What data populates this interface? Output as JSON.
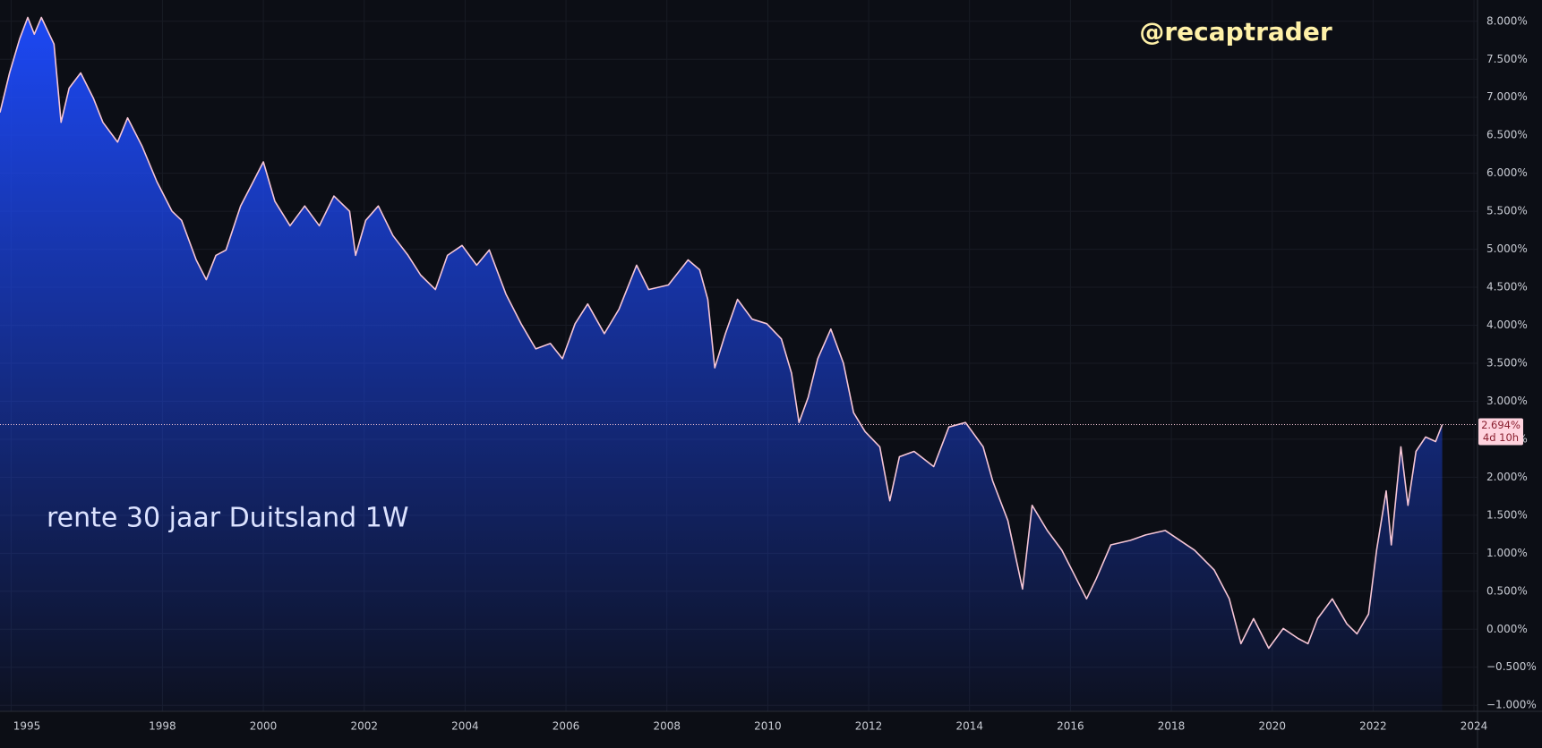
{
  "chart_data": {
    "type": "area",
    "title": "rente 30 jaar Duitsland 1W",
    "watermark": "@recaptrader",
    "x": [
      1994.78,
      1994.97,
      1995.17,
      1995.33,
      1995.46,
      1995.6,
      1995.85,
      1995.99,
      1996.15,
      1996.38,
      1996.63,
      1996.82,
      1997.11,
      1997.31,
      1997.6,
      1997.89,
      1998.19,
      1998.38,
      1998.67,
      1998.87,
      1999.06,
      1999.26,
      1999.55,
      1999.8,
      2000.0,
      2000.23,
      2000.53,
      2000.82,
      2001.11,
      2001.4,
      2001.71,
      2001.83,
      2002.03,
      2002.28,
      2002.57,
      2002.87,
      2003.12,
      2003.41,
      2003.65,
      2003.94,
      2004.23,
      2004.48,
      2004.81,
      2005.11,
      2005.4,
      2005.69,
      2005.93,
      2006.18,
      2006.43,
      2006.76,
      2007.05,
      2007.4,
      2007.64,
      2008.03,
      2008.42,
      2008.65,
      2008.81,
      2008.95,
      2009.16,
      2009.4,
      2009.69,
      2009.98,
      2010.27,
      2010.47,
      2010.62,
      2010.8,
      2010.99,
      2011.25,
      2011.5,
      2011.7,
      2011.93,
      2012.22,
      2012.42,
      2012.61,
      2012.9,
      2013.29,
      2013.59,
      2013.92,
      2014.27,
      2014.46,
      2014.76,
      2015.05,
      2015.24,
      2015.54,
      2015.83,
      2016.12,
      2016.32,
      2016.51,
      2016.8,
      2017.19,
      2017.49,
      2017.88,
      2018.17,
      2018.46,
      2018.85,
      2019.15,
      2019.38,
      2019.63,
      2019.93,
      2020.22,
      2020.51,
      2020.71,
      2020.9,
      2021.19,
      2021.48,
      2021.68,
      2021.91,
      2022.07,
      2022.26,
      2022.36,
      2022.55,
      2022.69,
      2022.85,
      2023.04,
      2023.24,
      2023.37
    ],
    "values": [
      6.8,
      7.32,
      7.77,
      8.05,
      7.83,
      8.05,
      7.7,
      6.67,
      7.12,
      7.32,
      6.99,
      6.67,
      6.41,
      6.73,
      6.35,
      5.89,
      5.5,
      5.38,
      4.86,
      4.6,
      4.92,
      4.99,
      5.57,
      5.89,
      6.15,
      5.63,
      5.31,
      5.57,
      5.31,
      5.7,
      5.5,
      4.92,
      5.38,
      5.57,
      5.18,
      4.92,
      4.66,
      4.47,
      4.92,
      5.05,
      4.79,
      4.99,
      4.41,
      4.02,
      3.69,
      3.76,
      3.56,
      4.02,
      4.28,
      3.89,
      4.21,
      4.79,
      4.47,
      4.53,
      4.86,
      4.73,
      4.34,
      3.44,
      3.89,
      4.34,
      4.08,
      4.02,
      3.82,
      3.37,
      2.72,
      3.05,
      3.56,
      3.95,
      3.5,
      2.85,
      2.6,
      2.4,
      1.69,
      2.27,
      2.34,
      2.14,
      2.66,
      2.72,
      2.4,
      1.95,
      1.43,
      0.53,
      1.63,
      1.3,
      1.04,
      0.66,
      0.4,
      0.66,
      1.11,
      1.17,
      1.24,
      1.3,
      1.17,
      1.04,
      0.78,
      0.4,
      -0.19,
      0.14,
      -0.25,
      0.01,
      -0.12,
      -0.19,
      0.14,
      0.4,
      0.07,
      -0.06,
      0.2,
      1.04,
      1.82,
      1.11,
      2.4,
      1.63,
      2.34,
      2.53,
      2.47,
      2.694
    ],
    "color": "#f6c6d6",
    "fill_color": "#1d4bff",
    "last_value": {
      "value": 2.694,
      "label": "2.694%"
    },
    "countdown": "4d 10h",
    "xlim": [
      1994.78,
      2024.07
    ],
    "ylim": [
      -1.08,
      8.28
    ],
    "xticks": [
      1995,
      1998,
      2000,
      2002,
      2004,
      2006,
      2008,
      2010,
      2012,
      2014,
      2016,
      2018,
      2020,
      2022,
      2024
    ],
    "yticks": [
      {
        "value": -1,
        "label": "−1.000%"
      },
      {
        "value": -0.5,
        "label": "−0.500%"
      },
      {
        "value": 0,
        "label": "0.000%"
      },
      {
        "value": 0.5,
        "label": "0.500%"
      },
      {
        "value": 1,
        "label": "1.000%"
      },
      {
        "value": 1.5,
        "label": "1.500%"
      },
      {
        "value": 2,
        "label": "2.000%"
      },
      {
        "value": 2.5,
        "label": "2.500%"
      },
      {
        "value": 3,
        "label": "3.000%"
      },
      {
        "value": 3.5,
        "label": "3.500%"
      },
      {
        "value": 4,
        "label": "4.000%"
      },
      {
        "value": 4.5,
        "label": "4.500%"
      },
      {
        "value": 5,
        "label": "5.000%"
      },
      {
        "value": 5.5,
        "label": "5.500%"
      },
      {
        "value": 6,
        "label": "6.000%"
      },
      {
        "value": 6.5,
        "label": "6.500%"
      },
      {
        "value": 7,
        "label": "7.000%"
      },
      {
        "value": 7.5,
        "label": "7.500%"
      },
      {
        "value": 8,
        "label": "8.000%"
      }
    ],
    "grid": true
  }
}
